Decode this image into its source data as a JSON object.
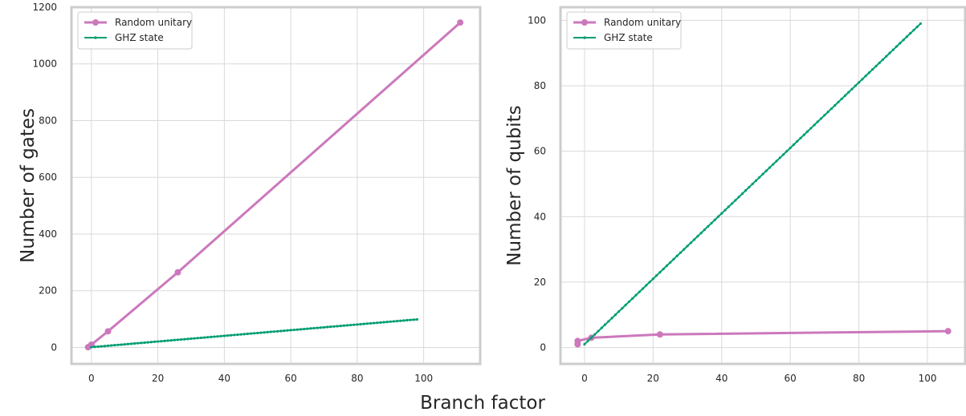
{
  "chart_data": [
    {
      "type": "line",
      "ylabel": "Number of gates",
      "xlim": [
        -6,
        117
      ],
      "ylim": [
        -58,
        1200
      ],
      "xticks": [
        0,
        20,
        40,
        60,
        80,
        100
      ],
      "yticks": [
        0,
        200,
        400,
        600,
        800,
        1000,
        1200
      ],
      "grid": true,
      "legend": "top-left",
      "series": [
        {
          "name": "Random unitary",
          "color": "#cc78bc",
          "marker": "large-dot",
          "x": [
            -1,
            0,
            5,
            26,
            111
          ],
          "y": [
            1,
            10,
            57,
            265,
            1146
          ]
        },
        {
          "name": "GHZ state",
          "color": "#029e73",
          "marker": "small-dot",
          "x_range": [
            0,
            98
          ],
          "y_range": [
            1,
            99
          ]
        }
      ]
    },
    {
      "type": "line",
      "ylabel": "Number of qubits",
      "xlim": [
        -7,
        111
      ],
      "ylim": [
        -5,
        104
      ],
      "xticks": [
        0,
        20,
        40,
        60,
        80,
        100
      ],
      "yticks": [
        0,
        20,
        40,
        60,
        80,
        100
      ],
      "grid": true,
      "legend": "top-left",
      "series": [
        {
          "name": "Random unitary",
          "color": "#cc78bc",
          "marker": "large-dot",
          "x": [
            -2,
            -2,
            2,
            22,
            106
          ],
          "y": [
            1,
            2,
            3,
            4,
            5
          ]
        },
        {
          "name": "GHZ state",
          "color": "#029e73",
          "marker": "small-dot",
          "x_range": [
            0,
            98
          ],
          "y_range": [
            1,
            99
          ]
        }
      ]
    }
  ],
  "shared": {
    "xlabel": "Branch factor"
  }
}
